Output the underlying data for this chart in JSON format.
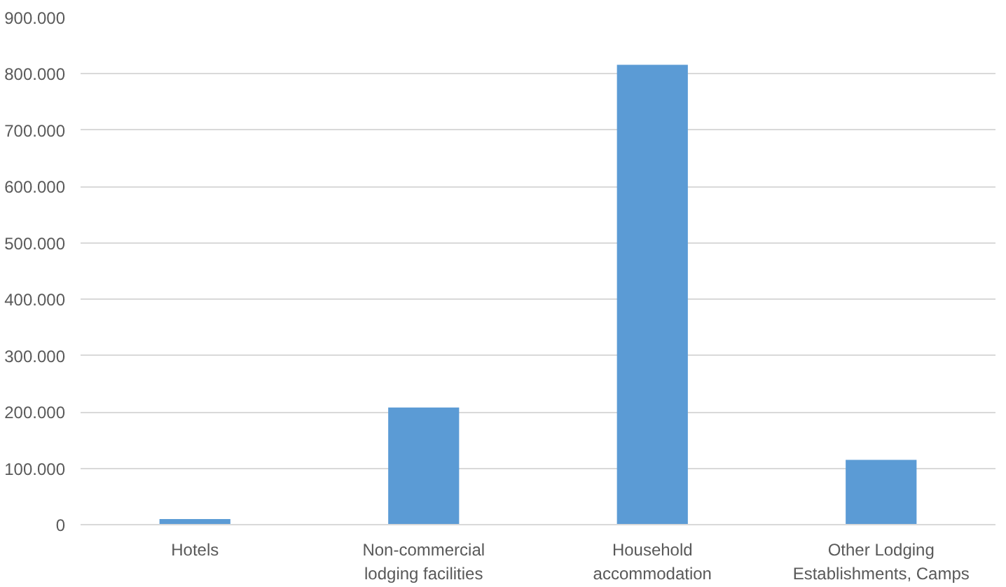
{
  "chart_data": {
    "type": "bar",
    "categories": [
      "Hotels",
      "Non-commercial lodging facilities",
      "Household accommodation",
      "Other Lodging Establishments, Camps"
    ],
    "values": [
      10000,
      208000,
      816000,
      115000
    ],
    "color": "#5b9bd5",
    "ylim": [
      0,
      900000
    ],
    "yticks": [
      {
        "value": 0,
        "label": "0"
      },
      {
        "value": 100000,
        "label": "100.000"
      },
      {
        "value": 200000,
        "label": "200.000"
      },
      {
        "value": 300000,
        "label": "300.000"
      },
      {
        "value": 400000,
        "label": "400.000"
      },
      {
        "value": 500000,
        "label": "500.000"
      },
      {
        "value": 600000,
        "label": "600.000"
      },
      {
        "value": 700000,
        "label": "700.000"
      },
      {
        "value": 800000,
        "label": "800.000"
      },
      {
        "value": 900000,
        "label": "900.000"
      }
    ],
    "grid": "y"
  }
}
